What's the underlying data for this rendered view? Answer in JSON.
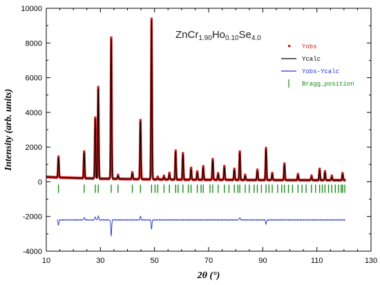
{
  "chart_data": {
    "type": "line",
    "title": {
      "parts": [
        {
          "text": "ZnCr",
          "sub": false
        },
        {
          "text": "1.90",
          "sub": true
        },
        {
          "text": "Ho",
          "sub": false
        },
        {
          "text": "0.10",
          "sub": true
        },
        {
          "text": "Se",
          "sub": false
        },
        {
          "text": "4.0",
          "sub": true
        }
      ]
    },
    "xlabel": "2θ (°)",
    "ylabel": "Intensity (arb. units)",
    "xlim": [
      10,
      130
    ],
    "ylim": [
      -4000,
      10000
    ],
    "xticks": [
      10,
      30,
      50,
      70,
      90,
      110,
      130
    ],
    "yticks": [
      -4000,
      -2000,
      0,
      2000,
      4000,
      6000,
      8000,
      10000
    ],
    "grid": false,
    "legend_position": "top-right",
    "legend": [
      {
        "label": "Yobs",
        "marker": "dot",
        "color": "#cc2222"
      },
      {
        "label": "Ycalc",
        "marker": "line",
        "color": "#000000"
      },
      {
        "label": "Yobs-Ycalc",
        "marker": "line",
        "color": "#2233cc"
      },
      {
        "label": "Bragg_position",
        "marker": "tick",
        "color": "#1a8a1a"
      }
    ],
    "background": {
      "x": [
        14,
        30,
        60,
        90,
        120
      ],
      "y": [
        250,
        180,
        120,
        100,
        90
      ]
    },
    "peaks": [
      {
        "x": 14.5,
        "y": 1450
      },
      {
        "x": 24.0,
        "y": 1750
      },
      {
        "x": 28.1,
        "y": 3700
      },
      {
        "x": 29.2,
        "y": 5450
      },
      {
        "x": 34.0,
        "y": 8300
      },
      {
        "x": 36.5,
        "y": 400
      },
      {
        "x": 41.8,
        "y": 550
      },
      {
        "x": 44.8,
        "y": 3550
      },
      {
        "x": 48.9,
        "y": 9400
      },
      {
        "x": 51.2,
        "y": 280
      },
      {
        "x": 53.5,
        "y": 350
      },
      {
        "x": 55.5,
        "y": 500
      },
      {
        "x": 57.8,
        "y": 1800
      },
      {
        "x": 60.5,
        "y": 1650
      },
      {
        "x": 63.5,
        "y": 800
      },
      {
        "x": 65.8,
        "y": 600
      },
      {
        "x": 68.0,
        "y": 900
      },
      {
        "x": 71.5,
        "y": 1300
      },
      {
        "x": 73.5,
        "y": 500
      },
      {
        "x": 75.8,
        "y": 900
      },
      {
        "x": 79.5,
        "y": 750
      },
      {
        "x": 81.5,
        "y": 1750
      },
      {
        "x": 83.5,
        "y": 400
      },
      {
        "x": 88.0,
        "y": 700
      },
      {
        "x": 91.2,
        "y": 1950
      },
      {
        "x": 93.5,
        "y": 500
      },
      {
        "x": 98.0,
        "y": 1050
      },
      {
        "x": 103.0,
        "y": 450
      },
      {
        "x": 108.0,
        "y": 350
      },
      {
        "x": 111.0,
        "y": 750
      },
      {
        "x": 113.0,
        "y": 600
      },
      {
        "x": 115.5,
        "y": 350
      },
      {
        "x": 119.5,
        "y": 500
      }
    ],
    "bragg_level": -400,
    "bragg_positions": [
      14.5,
      24.0,
      28.1,
      29.2,
      34.0,
      36.5,
      41.8,
      44.8,
      48.9,
      50.2,
      51.2,
      53.5,
      55.5,
      57.8,
      58.7,
      60.5,
      62.5,
      63.5,
      65.8,
      67.2,
      68.0,
      70.5,
      71.5,
      73.5,
      75.8,
      77.5,
      79.5,
      80.8,
      81.5,
      83.5,
      85.0,
      86.8,
      88.0,
      89.5,
      91.2,
      92.3,
      93.5,
      95.5,
      97.0,
      98.0,
      99.5,
      101.0,
      103.0,
      104.5,
      106.0,
      108.0,
      109.5,
      111.0,
      112.0,
      113.0,
      114.3,
      115.5,
      116.8,
      118.0,
      119.0,
      119.5,
      120.3
    ],
    "difference_baseline": -2200,
    "difference_features": [
      {
        "x": 14.5,
        "y": -300
      },
      {
        "x": 24.0,
        "y": 150
      },
      {
        "x": 28.1,
        "y": 200
      },
      {
        "x": 29.2,
        "y": 250
      },
      {
        "x": 34.0,
        "y": -900
      },
      {
        "x": 44.8,
        "y": 200
      },
      {
        "x": 48.9,
        "y": -500
      },
      {
        "x": 81.5,
        "y": 150
      },
      {
        "x": 91.2,
        "y": -250
      }
    ]
  }
}
